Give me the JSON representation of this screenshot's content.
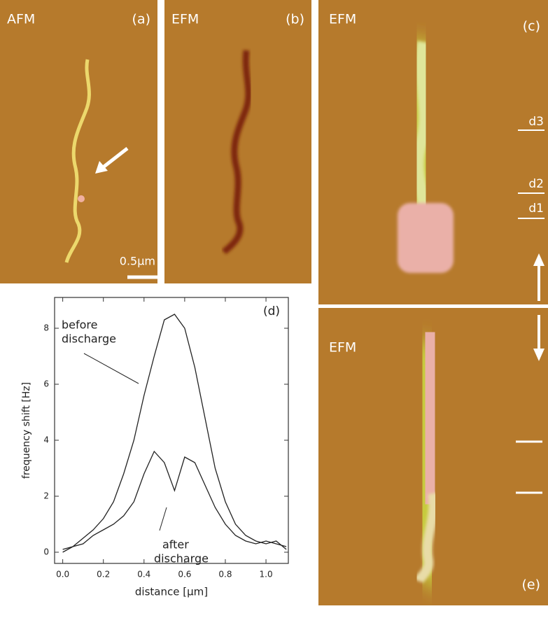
{
  "panels": [
    {
      "technique": "AFM",
      "label": "(a)"
    },
    {
      "technique": "EFM",
      "label": "(b)"
    },
    {
      "technique": "EFM",
      "label": "(c)"
    },
    {
      "technique": "EFM",
      "label": "(e)"
    }
  ],
  "scale_bar": "0.5µm",
  "markers": [
    "d3",
    "d2",
    "d1"
  ],
  "chart_data": {
    "type": "line",
    "panel_label": "(d)",
    "x_label": "distance [µm]",
    "y_label": "frequency shift [Hz]",
    "x": [
      0,
      0.05,
      0.1,
      0.15,
      0.2,
      0.25,
      0.3,
      0.35,
      0.4,
      0.45,
      0.5,
      0.55,
      0.6,
      0.65,
      0.7,
      0.75,
      0.8,
      0.85,
      0.9,
      0.95,
      1.0,
      1.05,
      1.1
    ],
    "series": [
      {
        "color": "#222222",
        "values": [
          0.1,
          0.2,
          0.5,
          0.8,
          1.2,
          1.8,
          2.8,
          4.0,
          5.6,
          7.0,
          8.3,
          8.5,
          8.0,
          6.6,
          4.8,
          3.0,
          1.8,
          1.0,
          0.6,
          0.4,
          0.3,
          0.4,
          0.1
        ]
      },
      {
        "color": "#222222",
        "values": [
          0.0,
          0.2,
          0.3,
          0.6,
          0.8,
          1.0,
          1.3,
          1.8,
          2.8,
          3.6,
          3.2,
          2.2,
          3.4,
          3.2,
          2.4,
          1.6,
          1.0,
          0.6,
          0.4,
          0.3,
          0.4,
          0.3,
          0.2
        ]
      }
    ],
    "annotations": [
      [
        "before",
        "discharge"
      ],
      [
        "after",
        "discharge"
      ]
    ],
    "xlim": [
      -0.04,
      1.11
    ],
    "ylim": [
      -0.4,
      9.1
    ],
    "xticks": [
      {
        "value": 0,
        "label": "0.0"
      },
      0.2,
      0.4,
      0.6,
      0.8,
      {
        "value": 1,
        "label": "1.0"
      }
    ],
    "yticks": [
      0,
      2,
      4,
      6,
      8
    ]
  }
}
